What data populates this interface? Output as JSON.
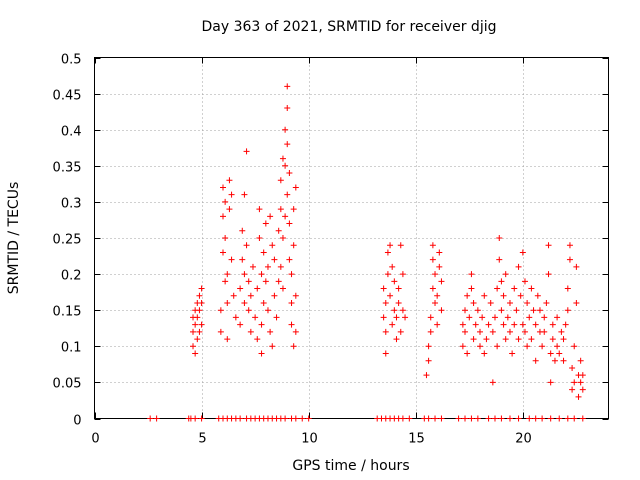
{
  "chart_data": {
    "type": "scatter",
    "title": "Day 363 of 2021, SRMTID for receiver djig",
    "xlabel": "GPS time / hours",
    "ylabel": "SRMTID / TECUs",
    "xlim": [
      0,
      24
    ],
    "ylim": [
      0,
      0.5
    ],
    "x_ticks": [
      0,
      5,
      10,
      15,
      20
    ],
    "y_ticks": [
      0,
      0.05,
      0.1,
      0.15,
      0.2,
      0.25,
      0.3,
      0.35,
      0.4,
      0.45,
      0.5
    ],
    "x_tick_labels": [
      "0",
      "5",
      "10",
      "15",
      "20"
    ],
    "y_tick_labels": [
      "0",
      "0.05",
      "0.1",
      "0.15",
      "0.2",
      "0.25",
      "0.3",
      "0.35",
      "0.4",
      "0.45",
      "0.5"
    ],
    "grid": true,
    "marker": "+",
    "series": [
      {
        "name": "SRMTID",
        "color": "#ff0000",
        "points": [
          [
            4.6,
            0.1
          ],
          [
            4.6,
            0.12
          ],
          [
            4.6,
            0.14
          ],
          [
            4.7,
            0.09
          ],
          [
            4.7,
            0.13
          ],
          [
            4.7,
            0.15
          ],
          [
            4.8,
            0.11
          ],
          [
            4.8,
            0.16
          ],
          [
            4.8,
            0.14
          ],
          [
            4.9,
            0.12
          ],
          [
            4.9,
            0.17
          ],
          [
            4.9,
            0.15
          ],
          [
            5.0,
            0.13
          ],
          [
            5.0,
            0.16
          ],
          [
            5.0,
            0.18
          ],
          [
            5.9,
            0.12
          ],
          [
            5.9,
            0.15
          ],
          [
            6.0,
            0.23
          ],
          [
            6.0,
            0.28
          ],
          [
            6.0,
            0.32
          ],
          [
            6.1,
            0.19
          ],
          [
            6.1,
            0.25
          ],
          [
            6.1,
            0.3
          ],
          [
            6.2,
            0.11
          ],
          [
            6.2,
            0.16
          ],
          [
            6.2,
            0.2
          ],
          [
            6.3,
            0.33
          ],
          [
            6.3,
            0.29
          ],
          [
            6.4,
            0.31
          ],
          [
            6.4,
            0.22
          ],
          [
            6.5,
            0.17
          ],
          [
            6.6,
            0.14
          ],
          [
            6.8,
            0.13
          ],
          [
            6.8,
            0.18
          ],
          [
            6.9,
            0.22
          ],
          [
            6.9,
            0.26
          ],
          [
            7.0,
            0.16
          ],
          [
            7.0,
            0.2
          ],
          [
            7.0,
            0.31
          ],
          [
            7.1,
            0.37
          ],
          [
            7.1,
            0.24
          ],
          [
            7.2,
            0.19
          ],
          [
            7.2,
            0.15
          ],
          [
            7.3,
            0.12
          ],
          [
            7.3,
            0.17
          ],
          [
            7.4,
            0.21
          ],
          [
            7.5,
            0.14
          ],
          [
            7.6,
            0.18
          ],
          [
            7.6,
            0.11
          ],
          [
            7.7,
            0.25
          ],
          [
            7.7,
            0.29
          ],
          [
            7.8,
            0.2
          ],
          [
            7.8,
            0.09
          ],
          [
            7.8,
            0.13
          ],
          [
            7.9,
            0.16
          ],
          [
            7.9,
            0.23
          ],
          [
            8.0,
            0.27
          ],
          [
            8.0,
            0.19
          ],
          [
            8.1,
            0.15
          ],
          [
            8.1,
            0.21
          ],
          [
            8.2,
            0.28
          ],
          [
            8.2,
            0.12
          ],
          [
            8.3,
            0.1
          ],
          [
            8.3,
            0.24
          ],
          [
            8.4,
            0.17
          ],
          [
            8.4,
            0.22
          ],
          [
            8.5,
            0.14
          ],
          [
            8.6,
            0.19
          ],
          [
            8.6,
            0.26
          ],
          [
            8.7,
            0.33
          ],
          [
            8.7,
            0.29
          ],
          [
            8.7,
            0.21
          ],
          [
            8.8,
            0.36
          ],
          [
            8.8,
            0.25
          ],
          [
            8.8,
            0.18
          ],
          [
            8.9,
            0.4
          ],
          [
            8.9,
            0.35
          ],
          [
            8.9,
            0.28
          ],
          [
            9.0,
            0.46
          ],
          [
            9.0,
            0.43
          ],
          [
            9.0,
            0.38
          ],
          [
            9.0,
            0.31
          ],
          [
            9.1,
            0.22
          ],
          [
            9.1,
            0.27
          ],
          [
            9.1,
            0.34
          ],
          [
            9.2,
            0.13
          ],
          [
            9.2,
            0.16
          ],
          [
            9.2,
            0.2
          ],
          [
            9.3,
            0.1
          ],
          [
            9.3,
            0.24
          ],
          [
            9.3,
            0.29
          ],
          [
            9.4,
            0.12
          ],
          [
            9.4,
            0.17
          ],
          [
            9.4,
            0.32
          ],
          [
            13.5,
            0.14
          ],
          [
            13.5,
            0.18
          ],
          [
            13.6,
            0.09
          ],
          [
            13.6,
            0.12
          ],
          [
            13.6,
            0.16
          ],
          [
            13.7,
            0.2
          ],
          [
            13.7,
            0.23
          ],
          [
            13.8,
            0.24
          ],
          [
            13.8,
            0.17
          ],
          [
            13.9,
            0.21
          ],
          [
            13.9,
            0.13
          ],
          [
            14.0,
            0.15
          ],
          [
            14.0,
            0.19
          ],
          [
            14.1,
            0.11
          ],
          [
            14.1,
            0.14
          ],
          [
            14.2,
            0.16
          ],
          [
            14.2,
            0.18
          ],
          [
            14.3,
            0.12
          ],
          [
            14.3,
            0.24
          ],
          [
            14.4,
            0.2
          ],
          [
            14.4,
            0.15
          ],
          [
            14.5,
            0.14
          ],
          [
            15.5,
            0.06
          ],
          [
            15.6,
            0.08
          ],
          [
            15.6,
            0.1
          ],
          [
            15.7,
            0.12
          ],
          [
            15.7,
            0.14
          ],
          [
            15.8,
            0.18
          ],
          [
            15.8,
            0.22
          ],
          [
            15.8,
            0.24
          ],
          [
            15.9,
            0.16
          ],
          [
            15.9,
            0.2
          ],
          [
            16.0,
            0.13
          ],
          [
            16.0,
            0.17
          ],
          [
            16.1,
            0.21
          ],
          [
            16.1,
            0.23
          ],
          [
            16.2,
            0.15
          ],
          [
            16.2,
            0.19
          ],
          [
            17.2,
            0.1
          ],
          [
            17.2,
            0.13
          ],
          [
            17.3,
            0.15
          ],
          [
            17.3,
            0.12
          ],
          [
            17.4,
            0.09
          ],
          [
            17.4,
            0.17
          ],
          [
            17.5,
            0.14
          ],
          [
            17.6,
            0.2
          ],
          [
            17.6,
            0.18
          ],
          [
            17.7,
            0.16
          ],
          [
            17.7,
            0.11
          ],
          [
            17.8,
            0.13
          ],
          [
            17.9,
            0.15
          ],
          [
            18.0,
            0.1
          ],
          [
            18.0,
            0.12
          ],
          [
            18.1,
            0.14
          ],
          [
            18.2,
            0.09
          ],
          [
            18.2,
            0.17
          ],
          [
            18.3,
            0.11
          ],
          [
            18.4,
            0.13
          ],
          [
            18.5,
            0.16
          ],
          [
            18.6,
            0.05
          ],
          [
            18.6,
            0.12
          ],
          [
            18.7,
            0.14
          ],
          [
            18.8,
            0.18
          ],
          [
            18.8,
            0.1
          ],
          [
            18.9,
            0.25
          ],
          [
            18.9,
            0.22
          ],
          [
            19.0,
            0.15
          ],
          [
            19.0,
            0.19
          ],
          [
            19.1,
            0.13
          ],
          [
            19.1,
            0.17
          ],
          [
            19.2,
            0.11
          ],
          [
            19.2,
            0.2
          ],
          [
            19.3,
            0.14
          ],
          [
            19.4,
            0.12
          ],
          [
            19.4,
            0.16
          ],
          [
            19.5,
            0.09
          ],
          [
            19.6,
            0.13
          ],
          [
            19.6,
            0.18
          ],
          [
            19.7,
            0.15
          ],
          [
            19.8,
            0.11
          ],
          [
            19.8,
            0.21
          ],
          [
            19.9,
            0.17
          ],
          [
            20.0,
            0.13
          ],
          [
            20.0,
            0.23
          ],
          [
            20.1,
            0.19
          ],
          [
            20.1,
            0.12
          ],
          [
            20.2,
            0.16
          ],
          [
            20.2,
            0.1
          ],
          [
            20.3,
            0.14
          ],
          [
            20.4,
            0.18
          ],
          [
            20.4,
            0.11
          ],
          [
            20.5,
            0.15
          ],
          [
            20.6,
            0.08
          ],
          [
            20.6,
            0.13
          ],
          [
            20.7,
            0.17
          ],
          [
            20.8,
            0.12
          ],
          [
            20.8,
            0.15
          ],
          [
            20.9,
            0.1
          ],
          [
            21.0,
            0.14
          ],
          [
            21.0,
            0.12
          ],
          [
            21.1,
            0.16
          ],
          [
            21.2,
            0.24
          ],
          [
            21.2,
            0.2
          ],
          [
            21.3,
            0.05
          ],
          [
            21.3,
            0.09
          ],
          [
            21.4,
            0.13
          ],
          [
            21.4,
            0.11
          ],
          [
            21.5,
            0.08
          ],
          [
            21.6,
            0.1
          ],
          [
            21.6,
            0.14
          ],
          [
            21.7,
            0.09
          ],
          [
            21.8,
            0.12
          ],
          [
            21.9,
            0.08
          ],
          [
            21.9,
            0.11
          ],
          [
            22.0,
            0.13
          ],
          [
            22.1,
            0.15
          ],
          [
            22.1,
            0.18
          ],
          [
            22.2,
            0.22
          ],
          [
            22.2,
            0.24
          ],
          [
            22.3,
            0.04
          ],
          [
            22.3,
            0.07
          ],
          [
            22.4,
            0.05
          ],
          [
            22.4,
            0.1
          ],
          [
            22.5,
            0.21
          ],
          [
            22.5,
            0.16
          ],
          [
            22.6,
            0.03
          ],
          [
            22.6,
            0.06
          ],
          [
            22.7,
            0.05
          ],
          [
            22.7,
            0.08
          ],
          [
            22.8,
            0.06
          ],
          [
            22.8,
            0.04
          ]
        ]
      }
    ],
    "zero_markers_x": [
      2.6,
      2.9,
      4.4,
      4.5,
      4.7,
      5.0,
      5.8,
      6.0,
      6.2,
      6.4,
      6.6,
      6.8,
      7.1,
      7.3,
      7.5,
      7.7,
      7.9,
      8.1,
      8.3,
      8.5,
      8.7,
      8.9,
      9.2,
      9.4,
      9.7,
      10.0,
      13.2,
      13.4,
      13.6,
      13.8,
      14.0,
      14.2,
      14.4,
      14.7,
      15.4,
      15.6,
      15.9,
      16.2,
      17.0,
      17.3,
      17.6,
      17.9,
      18.4,
      18.7,
      19.0,
      19.4,
      19.8,
      20.3,
      20.6,
      20.9,
      21.3,
      21.7,
      22.1,
      22.4,
      22.8
    ]
  }
}
